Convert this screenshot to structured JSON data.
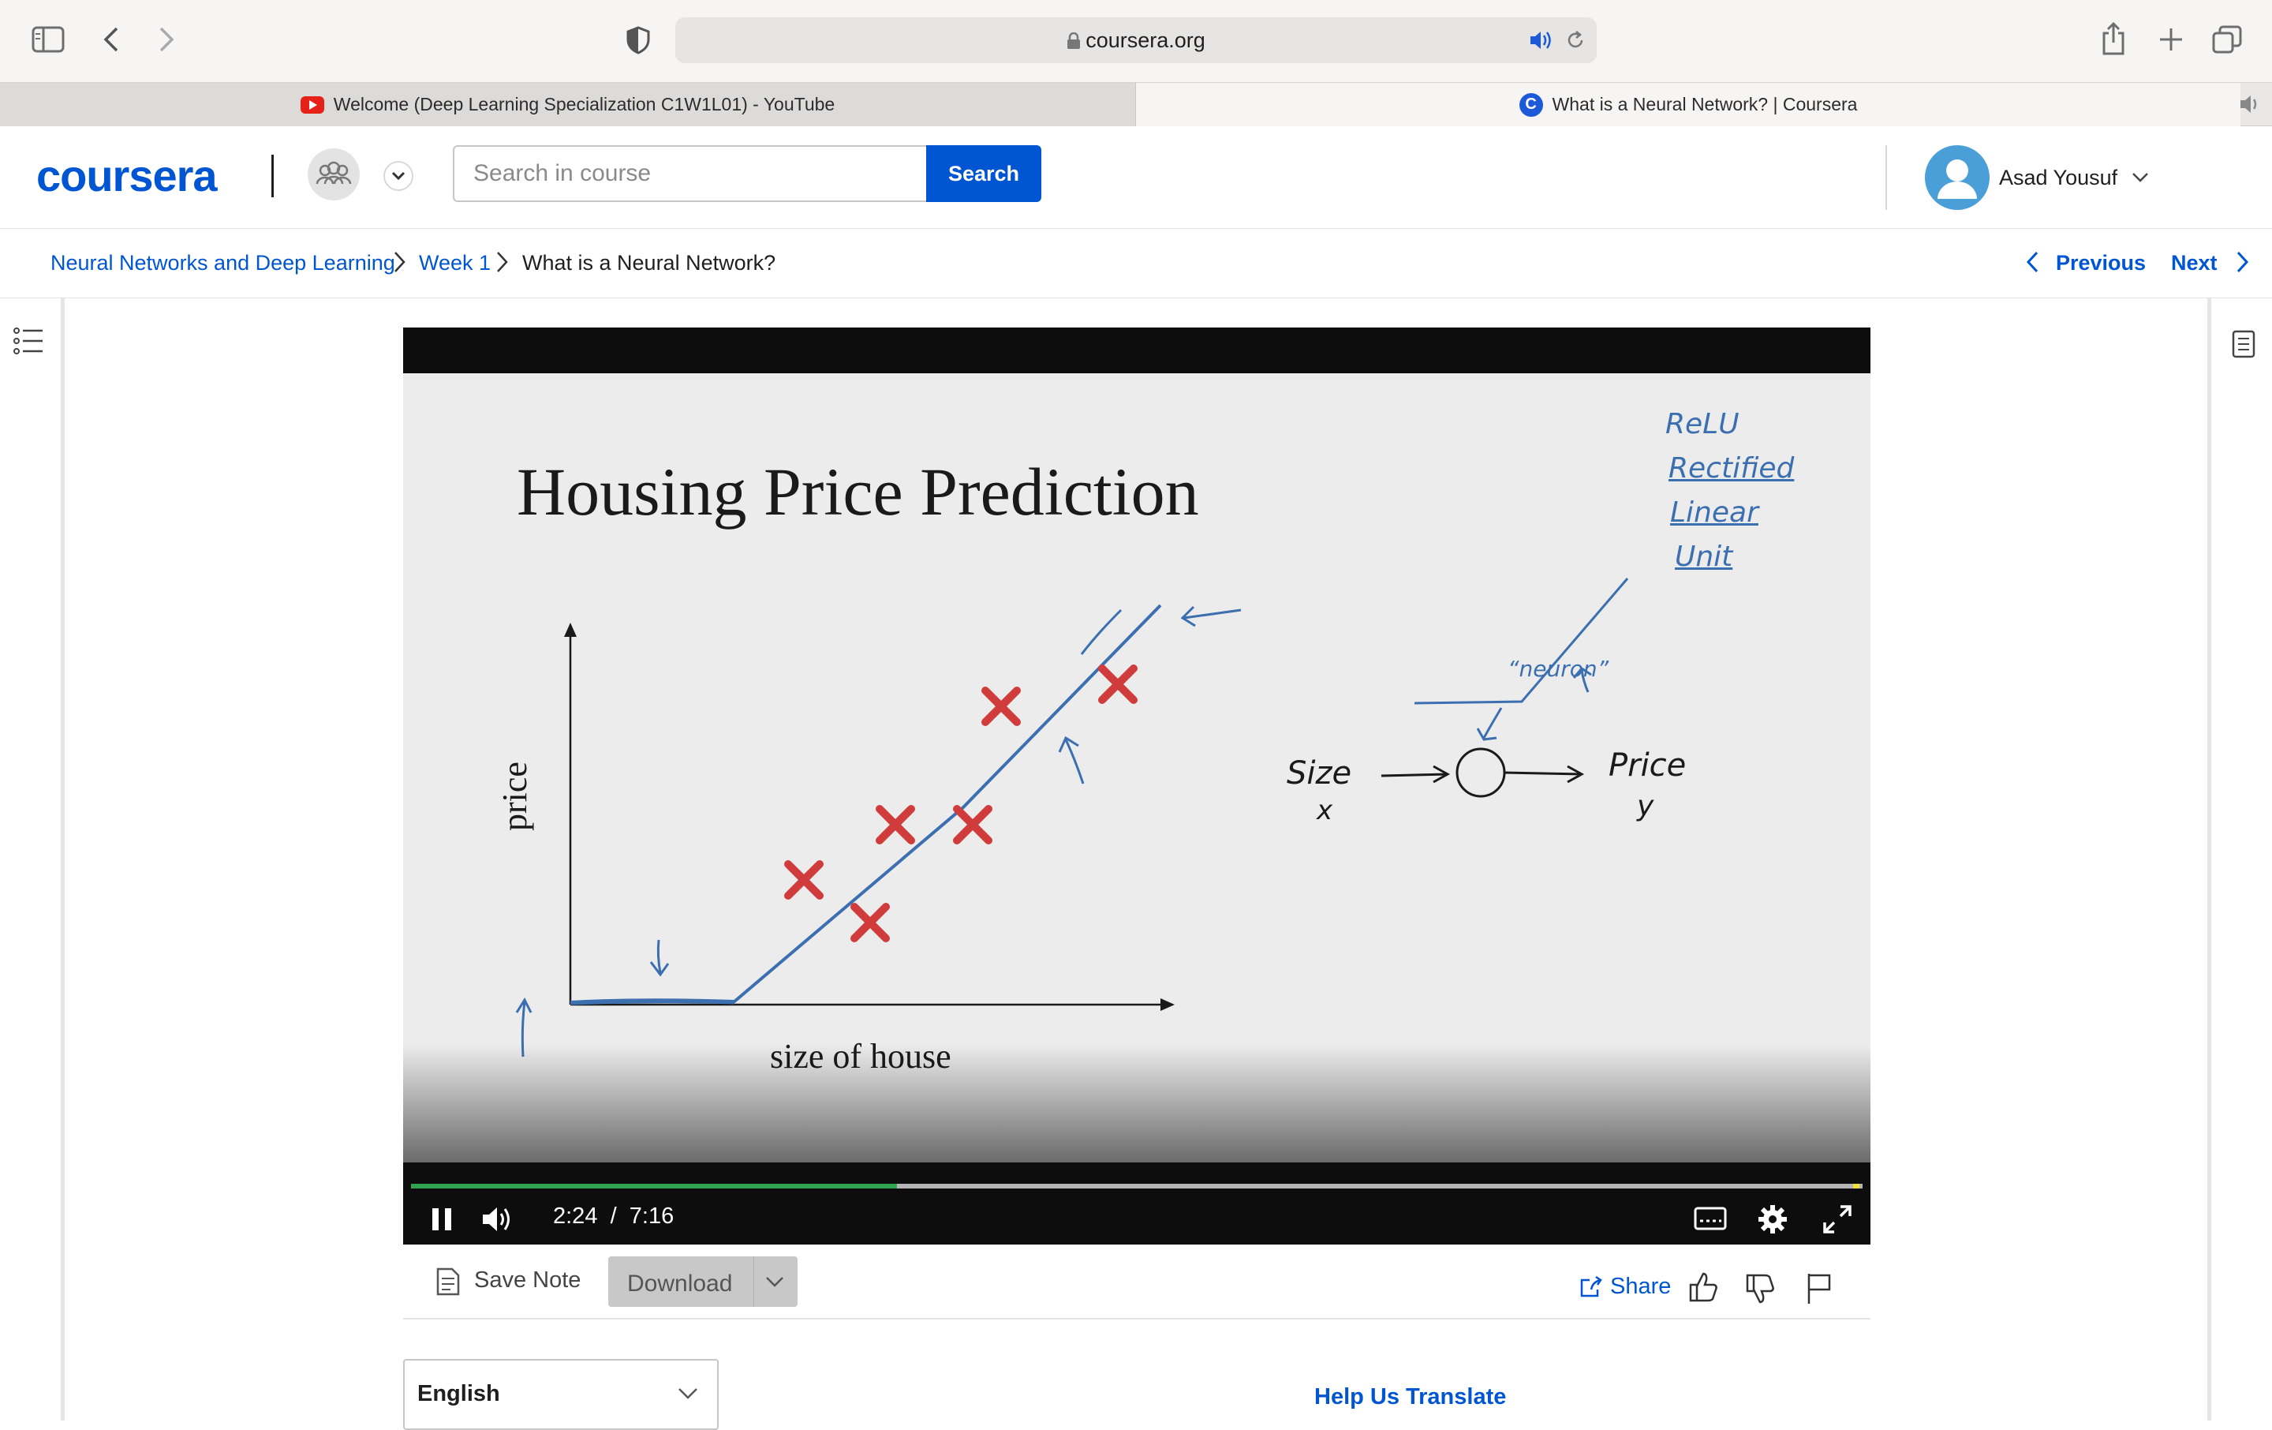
{
  "browser": {
    "url": "coursera.org",
    "tabs": [
      {
        "label": "Welcome (Deep Learning Specialization C1W1L01) - YouTube"
      },
      {
        "label": "What is a Neural Network? | Coursera"
      }
    ]
  },
  "header": {
    "logo": "coursera",
    "search_placeholder": "Search in course",
    "search_label": "Search",
    "user_name": "Asad Yousuf"
  },
  "breadcrumb": {
    "items": [
      "Neural Networks and Deep Learning",
      "Week 1",
      "What is a Neural Network?"
    ],
    "previous": "Previous",
    "next": "Next"
  },
  "video": {
    "slide_title": "Housing Price Prediction",
    "x_axis_label": "size of house",
    "y_axis_label": "price",
    "annotations": [
      "ReLU",
      "Rectified",
      "Linear",
      "Unit",
      "“neuron”",
      "Size",
      "x",
      "Price",
      "y"
    ],
    "current_time": "2:24",
    "time_separator": "/",
    "duration": "7:16",
    "progress": 0.335
  },
  "actions": {
    "save_note": "Save Note",
    "download": "Download",
    "share": "Share"
  },
  "footer": {
    "language": "English",
    "help_translate": "Help Us Translate"
  },
  "colors": {
    "brand": "#0056d2",
    "ink_blue": "#3c6fb0",
    "cross_red": "#d03b3b",
    "progress_green": "#2ea44f"
  }
}
